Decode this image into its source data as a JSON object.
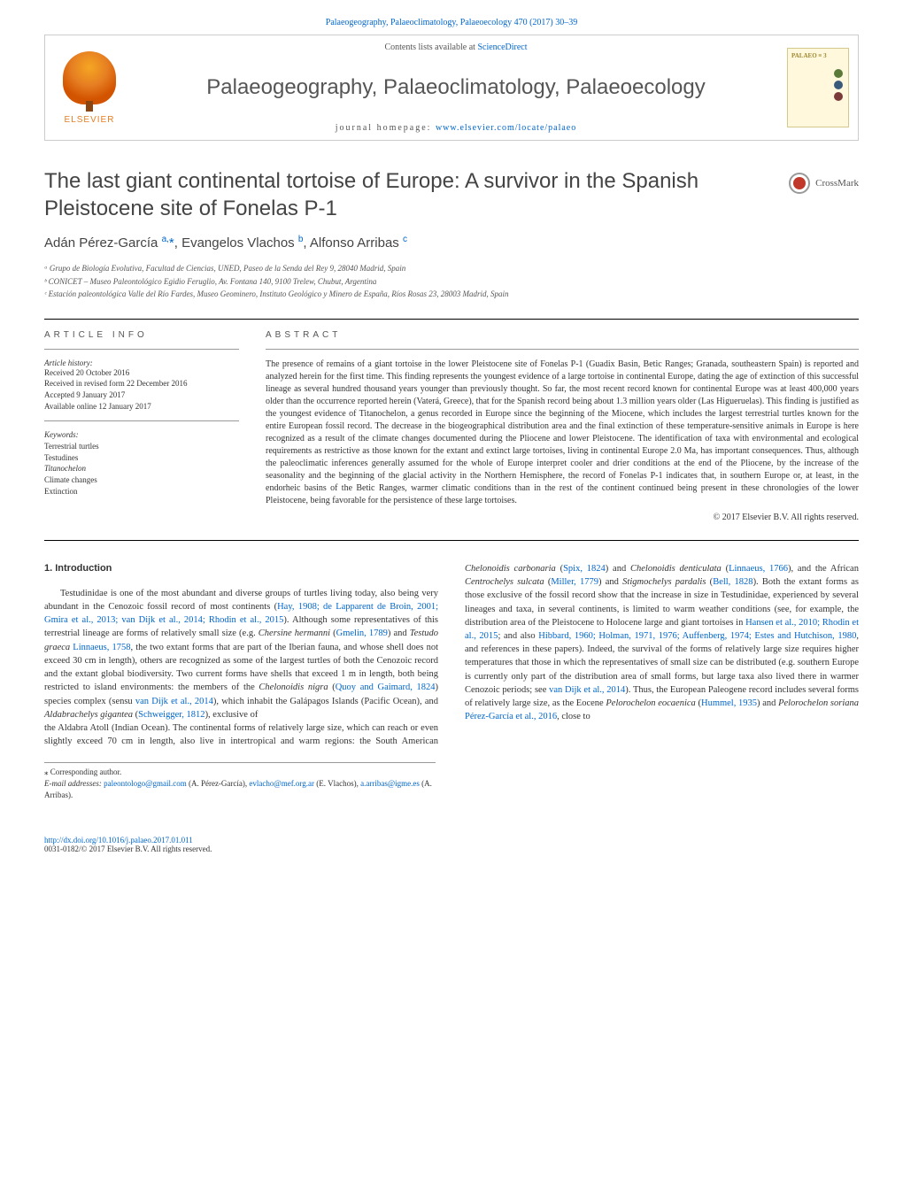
{
  "header": {
    "citation_journal": "Palaeogeography, Palaeoclimatology, Palaeoecology 470 (2017) 30–39",
    "contents_prefix": "Contents lists available at ",
    "contents_link": "ScienceDirect",
    "journal_title": "Palaeogeography, Palaeoclimatology, Palaeoecology",
    "homepage_label": "journal homepage: ",
    "homepage_url": "www.elsevier.com/locate/palaeo",
    "publisher_logo_text": "ELSEVIER",
    "cover_label": "PALAEO ≡ 3",
    "cover_dot_colors": [
      "#5a7a3a",
      "#3a5a7a",
      "#7a3a3a"
    ]
  },
  "crossmark": {
    "label": "CrossMark"
  },
  "article": {
    "title": "The last giant continental tortoise of Europe: A survivor in the Spanish Pleistocene site of Fonelas P-1",
    "authors_html": "Adán Pérez-García <sup><a>a,</a></sup><a>*</a>, Evangelos Vlachos <sup><a>b</a></sup>, Alfonso Arribas <sup><a>c</a></sup>",
    "affiliations": [
      "ᵃ Grupo de Biología Evolutiva, Facultad de Ciencias, UNED, Paseo de la Senda del Rey 9, 28040 Madrid, Spain",
      "ᵇ CONICET – Museo Paleontológico Egidio Feruglio, Av. Fontana 140, 9100 Trelew, Chubut, Argentina",
      "ᶜ Estación paleontológica Valle del Río Fardes, Museo Geominero, Instituto Geológico y Minero de España, Ríos Rosas 23, 28003 Madrid, Spain"
    ]
  },
  "meta": {
    "article_info_heading": "ARTICLE INFO",
    "history_label": "Article history:",
    "history": [
      "Received 20 October 2016",
      "Received in revised form 22 December 2016",
      "Accepted 9 January 2017",
      "Available online 12 January 2017"
    ],
    "keywords_label": "Keywords:",
    "keywords": [
      {
        "text": "Terrestrial turtles",
        "italic": false
      },
      {
        "text": "Testudines",
        "italic": false
      },
      {
        "text": "Titanochelon",
        "italic": true
      },
      {
        "text": "Climate changes",
        "italic": false
      },
      {
        "text": "Extinction",
        "italic": false
      }
    ]
  },
  "abstract": {
    "heading": "ABSTRACT",
    "text": "The presence of remains of a giant tortoise in the lower Pleistocene site of Fonelas P-1 (Guadix Basin, Betic Ranges; Granada, southeastern Spain) is reported and analyzed herein for the first time. This finding represents the youngest evidence of a large tortoise in continental Europe, dating the age of extinction of this successful lineage as several hundred thousand years younger than previously thought. So far, the most recent record known for continental Europe was at least 400,000 years older than the occurrence reported herein (Vaterá, Greece), that for the Spanish record being about 1.3 million years older (Las Higueruelas). This finding is justified as the youngest evidence of Titanochelon, a genus recorded in Europe since the beginning of the Miocene, which includes the largest terrestrial turtles known for the entire European fossil record. The decrease in the biogeographical distribution area and the final extinction of these temperature-sensitive animals in Europe is here recognized as a result of the climate changes documented during the Pliocene and lower Pleistocene. The identification of taxa with environmental and ecological requirements as restrictive as those known for the extant and extinct large tortoises, living in continental Europe 2.0 Ma, has important consequences. Thus, although the paleoclimatic inferences generally assumed for the whole of Europe interpret cooler and drier conditions at the end of the Pliocene, by the increase of the seasonality and the beginning of the glacial activity in the Northern Hemisphere, the record of Fonelas P-1 indicates that, in southern Europe or, at least, in the endorheic basins of the Betic Ranges, warmer climatic conditions than in the rest of the continent continued being present in these chronologies of the lower Pleistocene, being favorable for the persistence of these large tortoises.",
    "copyright": "© 2017 Elsevier B.V. All rights reserved."
  },
  "body": {
    "intro_heading": "1. Introduction",
    "col1_html": "Testudinidae is one of the most abundant and diverse groups of turtles living today, also being very abundant in the Cenozoic fossil record of most continents (<a>Hay, 1908; de Lapparent de Broin, 2001; Gmira et al., 2013; van Dijk et al., 2014; Rhodin et al., 2015</a>). Although some representatives of this terrestrial lineage are forms of relatively small size (e.g. <span class=\"taxon\">Chersine hermanni</span> (<a>Gmelin, 1789</a>) and <span class=\"taxon\">Testudo graeca</span> <a>Linnaeus, 1758</a>, the two extant forms that are part of the Iberian fauna, and whose shell does not exceed 30 cm in length), others are recognized as some of the largest turtles of both the Cenozoic record and the extant global biodiversity. Two current forms have shells that exceed 1 m in length, both being restricted to island environments: the members of the <span class=\"taxon\">Chelonoidis nigra</span> (<a>Quoy and Gaimard, 1824</a>) species complex (sensu <a>van Dijk et al., 2014</a>), which inhabit the Galápagos Islands (Pacific Ocean), and <span class=\"taxon\">Aldabrachelys gigantea</span> (<a>Schweigger, 1812</a>), exclusive of",
    "col2_html": "the Aldabra Atoll (Indian Ocean). The continental forms of relatively large size, which can reach or even slightly exceed 70 cm in length, also live in intertropical and warm regions: the South American <span class=\"taxon\">Chelonoidis carbonaria</span> (<a>Spix, 1824</a>) and <span class=\"taxon\">Chelonoidis denticulata</span> (<a>Linnaeus, 1766</a>), and the African <span class=\"taxon\">Centrochelys sulcata</span> (<a>Miller, 1779</a>) and <span class=\"taxon\">Stigmochelys pardalis</span> (<a>Bell, 1828</a>). Both the extant forms as those exclusive of the fossil record show that the increase in size in Testudinidae, experienced by several lineages and taxa, in several continents, is limited to warm weather conditions (see, for example, the distribution area of the Pleistocene to Holocene large and giant tortoises in <a>Hansen et al., 2010; Rhodin et al., 2015</a>; and also <a>Hibbard, 1960; Holman, 1971, 1976; Auffenberg, 1974; Estes and Hutchison, 1980</a>, and references in these papers). Indeed, the survival of the forms of relatively large size requires higher temperatures that those in which the representatives of small size can be distributed (e.g. southern Europe is currently only part of the distribution area of small forms, but large taxa also lived there in warmer Cenozoic periods; see <a>van Dijk et al., 2014</a>). Thus, the European Paleogene record includes several forms of relatively large size, as the Eocene <span class=\"taxon\">Pelorochelon eocaenica</span> (<a>Hummel, 1935</a>) and <span class=\"taxon\">Pelorochelon soriana</span> <a>Pérez-García et al., 2016</a>, close to"
  },
  "footnotes": {
    "corresponding": "⁎ Corresponding author.",
    "email_label": "E-mail addresses: ",
    "emails_html": "<a>paleontologo@gmail.com</a> (A. Pérez-García), <a>evlacho@mef.org.ar</a> (E. Vlachos), <a>a.arribas@igme.es</a> (A. Arribas)."
  },
  "footer": {
    "doi": "http://dx.doi.org/10.1016/j.palaeo.2017.01.011",
    "issn_line": "0031-0182/© 2017 Elsevier B.V. All rights reserved."
  },
  "style": {
    "link_color": "#0066cc",
    "text_color": "#333333",
    "heading_color": "#555555",
    "background": "#ffffff",
    "body_font_size": 10.5,
    "abstract_font_size": 10,
    "affiliation_font_size": 9,
    "title_font_size": 24
  }
}
